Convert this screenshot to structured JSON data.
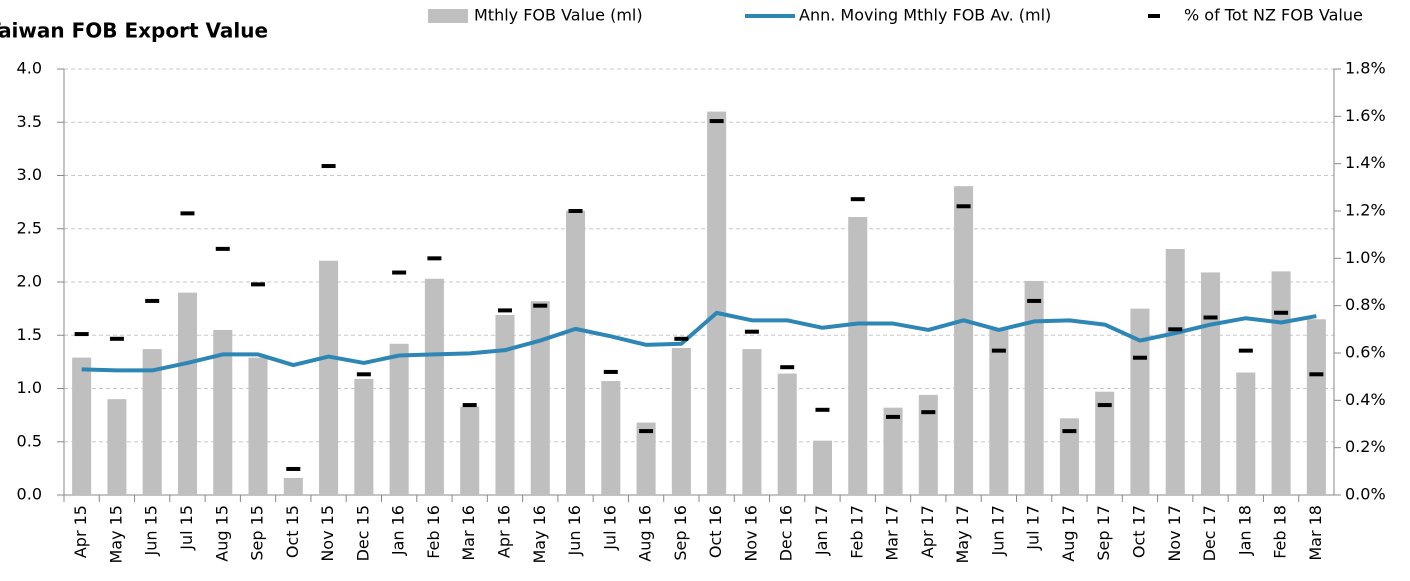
{
  "chart_data": {
    "type": "bar",
    "title": "Taiwan FOB Export Value",
    "categories": [
      "Apr 15",
      "May 15",
      "Jun 15",
      "Jul 15",
      "Aug 15",
      "Sep 15",
      "Oct 15",
      "Nov 15",
      "Dec 15",
      "Jan 16",
      "Feb 16",
      "Mar 16",
      "Apr 16",
      "May 16",
      "Jun 16",
      "Jul 16",
      "Aug 16",
      "Sep 16",
      "Oct 16",
      "Nov 16",
      "Dec 16",
      "Jan 17",
      "Feb 17",
      "Mar 17",
      "Apr 17",
      "May 17",
      "Jun 17",
      "Jul 17",
      "Aug 17",
      "Sep 17",
      "Oct 17",
      "Nov 17",
      "Dec 17",
      "Jan 18",
      "Feb 18",
      "Mar 18"
    ],
    "series": [
      {
        "name": "Mthly FOB Value (ml)",
        "type": "bar",
        "color": "#bfbfbf",
        "values": [
          1.29,
          0.9,
          1.37,
          1.9,
          1.55,
          1.29,
          0.16,
          2.2,
          1.09,
          1.42,
          2.03,
          0.83,
          1.69,
          1.82,
          2.67,
          1.07,
          0.68,
          1.38,
          3.6,
          1.37,
          1.14,
          0.51,
          2.61,
          0.82,
          0.94,
          2.9,
          1.55,
          2.01,
          0.72,
          0.97,
          1.75,
          2.31,
          2.09,
          1.15,
          2.1,
          1.65
        ]
      },
      {
        "name": "Ann. Moving Mthly FOB Av. (ml)",
        "type": "line",
        "color": "#2e86b5",
        "values": [
          1.18,
          1.17,
          1.17,
          1.24,
          1.32,
          1.32,
          1.22,
          1.3,
          1.24,
          1.31,
          1.32,
          1.33,
          1.36,
          1.45,
          1.56,
          1.49,
          1.41,
          1.42,
          1.71,
          1.64,
          1.64,
          1.57,
          1.61,
          1.61,
          1.55,
          1.64,
          1.55,
          1.63,
          1.64,
          1.6,
          1.45,
          1.52,
          1.6,
          1.66,
          1.62,
          1.68
        ]
      },
      {
        "name": "% of Tot NZ FOB Value",
        "type": "marker",
        "color": "#000000",
        "axis": "y2",
        "values": [
          0.68,
          0.66,
          0.82,
          1.19,
          1.04,
          0.89,
          0.11,
          1.39,
          0.51,
          0.94,
          1.0,
          0.38,
          0.78,
          0.8,
          1.2,
          0.52,
          0.27,
          0.66,
          1.58,
          0.69,
          0.54,
          0.36,
          1.25,
          0.33,
          0.35,
          1.22,
          0.61,
          0.82,
          0.27,
          0.38,
          0.58,
          0.7,
          0.75,
          0.61,
          0.77,
          0.51
        ]
      }
    ],
    "ylim": [
      0,
      4
    ],
    "yticks": [
      {
        "value": 0,
        "label": "0.0"
      },
      0.5,
      {
        "value": 1,
        "label": "1.0"
      },
      1.5,
      {
        "value": 2,
        "label": "2.0"
      },
      2.5,
      {
        "value": 3,
        "label": "3.0"
      },
      3.5,
      {
        "value": 4,
        "label": "4.0"
      }
    ],
    "y2lim": [
      0,
      1.8
    ],
    "y2ticks": [
      {
        "value": 0,
        "label": "0.0%"
      },
      {
        "value": 0.2,
        "label": "0.2%"
      },
      {
        "value": 0.4,
        "label": "0.4%"
      },
      {
        "value": 0.6,
        "label": "0.6%"
      },
      {
        "value": 0.8,
        "label": "0.8%"
      },
      {
        "value": 1.0,
        "label": "1.0%"
      },
      {
        "value": 1.2,
        "label": "1.2%"
      },
      {
        "value": 1.4,
        "label": "1.4%"
      },
      {
        "value": 1.6,
        "label": "1.6%"
      },
      {
        "value": 1.8,
        "label": "1.8%"
      }
    ],
    "grid": true
  }
}
